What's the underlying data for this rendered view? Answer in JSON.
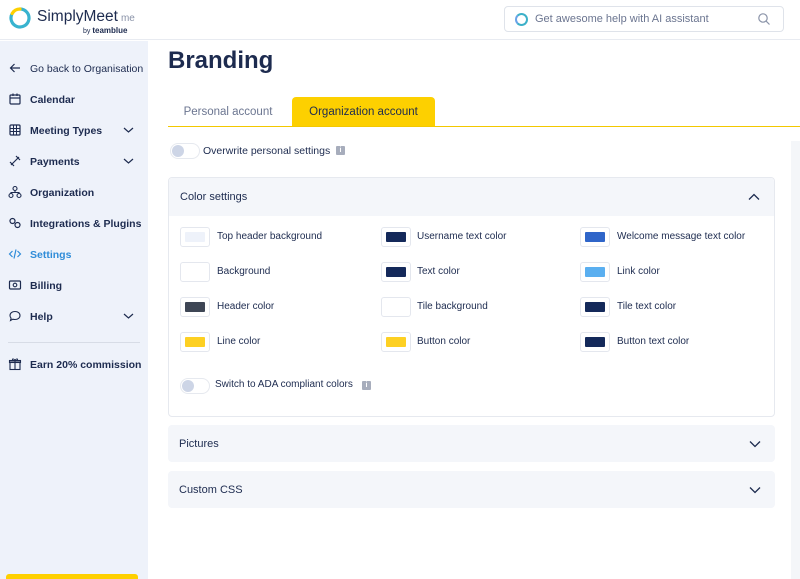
{
  "app": {
    "brand": "SimplyMeet",
    "brand_suffix": "me",
    "byline_prefix": "by",
    "byline_brand": "teamblue"
  },
  "search": {
    "placeholder": "Get awesome help with AI assistant"
  },
  "sidebar": {
    "back_label": "Go back to Organisation",
    "items": [
      {
        "label": "Calendar",
        "icon": "calendar-icon"
      },
      {
        "label": "Meeting Types",
        "icon": "grid-icon"
      },
      {
        "label": "Payments",
        "icon": "payments-icon"
      },
      {
        "label": "Organization",
        "icon": "organization-icon"
      },
      {
        "label": "Integrations & Plugins",
        "icon": "integrations-icon"
      },
      {
        "label": "Settings",
        "icon": "code-icon"
      },
      {
        "label": "Billing",
        "icon": "billing-icon"
      },
      {
        "label": "Help",
        "icon": "chat-icon"
      }
    ],
    "promo_label": "Earn 20% commission",
    "active_item": "Settings"
  },
  "main": {
    "title": "Branding",
    "tabs": [
      {
        "label": "Personal account",
        "active": false
      },
      {
        "label": "Organization account",
        "active": true
      }
    ],
    "overwrite_label": "Overwrite personal settings",
    "overwrite_on": false,
    "color_settings": {
      "title": "Color settings",
      "expanded": true,
      "swatches": [
        {
          "label": "Top header background",
          "color": "#eef2fa"
        },
        {
          "label": "Username text color",
          "color": "#14295a"
        },
        {
          "label": "Welcome message text color",
          "color": "#2f65c9"
        },
        {
          "label": "Background",
          "color": "#ffffff"
        },
        {
          "label": "Text color",
          "color": "#14295a"
        },
        {
          "label": "Link color",
          "color": "#5aaff0"
        },
        {
          "label": "Header color",
          "color": "#3e4655"
        },
        {
          "label": "Tile background",
          "color": "#ffffff"
        },
        {
          "label": "Tile text color",
          "color": "#14295a"
        },
        {
          "label": "Line color",
          "color": "#fdd023"
        },
        {
          "label": "Button color",
          "color": "#fdd023"
        },
        {
          "label": "Button text color",
          "color": "#14295a"
        }
      ],
      "ada_label": "Switch to ADA compliant colors",
      "ada_on": false
    },
    "sections": [
      {
        "title": "Pictures",
        "expanded": false
      },
      {
        "title": "Custom CSS",
        "expanded": false
      }
    ]
  },
  "colors": {
    "accent_yellow": "#fdd000",
    "sidebar_bg": "#eef2fa",
    "active_blue": "#2f8cd8",
    "text_dark": "#1d2b4f"
  }
}
